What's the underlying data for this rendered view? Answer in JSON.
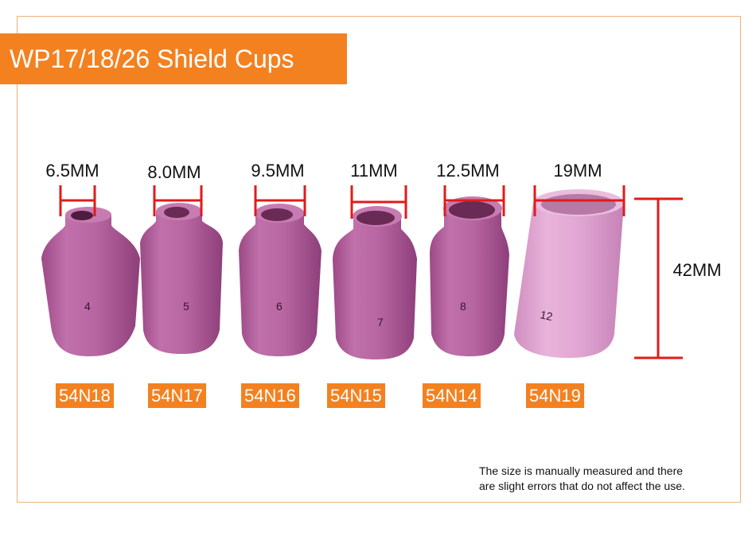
{
  "title": "WP17/18/26 Shield Cups",
  "colors": {
    "accent": "#f48120",
    "marker": "#e11b1b",
    "ceramic": "#b7639f",
    "ceramic_light": "#dc9dcc"
  },
  "cups": [
    {
      "inner_diameter": "6.5MM",
      "number": "4",
      "part_no": "54N18"
    },
    {
      "inner_diameter": "8.0MM",
      "number": "5",
      "part_no": "54N17"
    },
    {
      "inner_diameter": "9.5MM",
      "number": "6",
      "part_no": "54N16"
    },
    {
      "inner_diameter": "11MM",
      "number": "7",
      "part_no": "54N15"
    },
    {
      "inner_diameter": "12.5MM",
      "number": "8",
      "part_no": "54N14"
    },
    {
      "inner_diameter": "19MM",
      "number": "12",
      "part_no": "54N19"
    }
  ],
  "height_label": "42MM",
  "note": {
    "line1": "The size is manually measured and there",
    "line2": "are slight errors that do not affect the use."
  }
}
